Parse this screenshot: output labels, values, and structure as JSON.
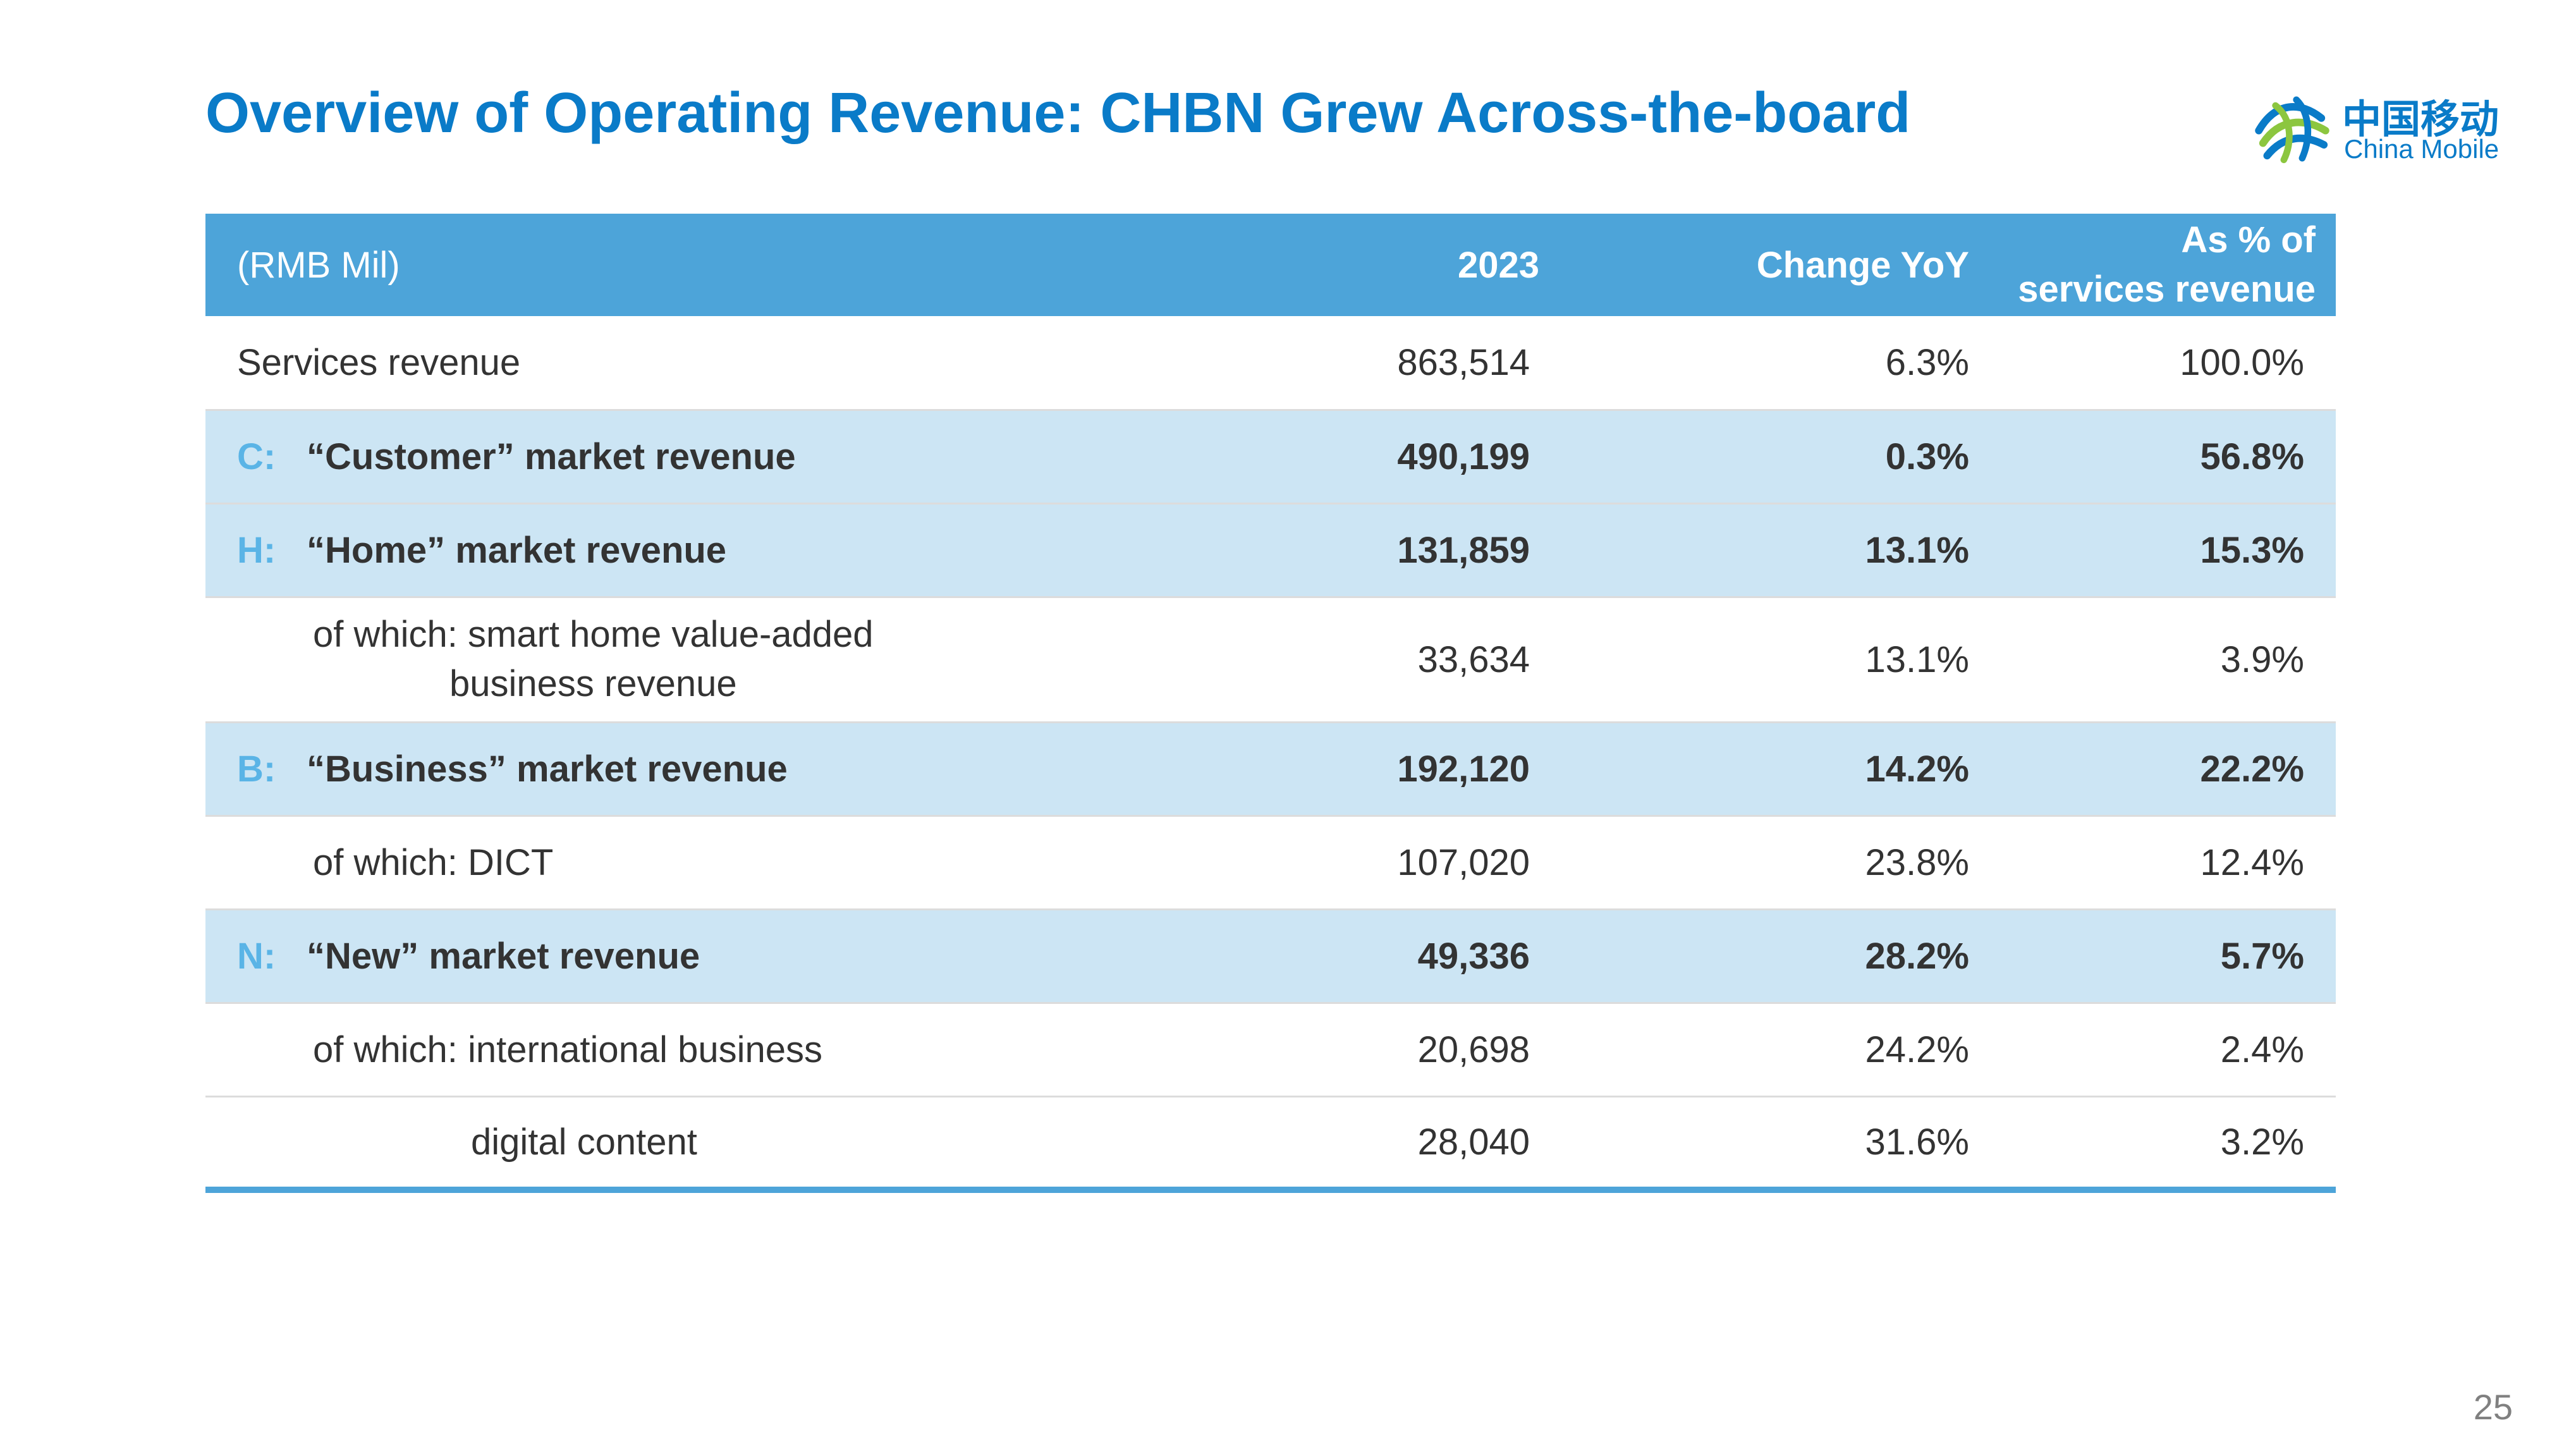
{
  "title": "Overview of Operating Revenue: CHBN Grew Across-the-board",
  "logo": {
    "cn": "中国移动",
    "en": "China Mobile",
    "icon": "china-mobile-logo-icon"
  },
  "table": {
    "headers": {
      "unit": "(RMB Mil)",
      "year": "2023",
      "change": "Change YoY",
      "pct_line1": "As % of",
      "pct_line2": "services revenue"
    },
    "rows": [
      {
        "prefix": "",
        "label": "Services revenue",
        "value": "863,514",
        "change": "6.3%",
        "pct": "100.0%"
      },
      {
        "prefix": "C:",
        "label": "“Customer” market revenue",
        "value": "490,199",
        "change": "0.3%",
        "pct": "56.8%"
      },
      {
        "prefix": "H:",
        "label": "“Home” market revenue",
        "value": "131,859",
        "change": "13.1%",
        "pct": "15.3%"
      },
      {
        "prefix": "",
        "label_line1": "of which: smart home value-added",
        "label_line2": "business revenue",
        "value": "33,634",
        "change": "13.1%",
        "pct": "3.9%"
      },
      {
        "prefix": "B:",
        "label": "“Business” market revenue",
        "value": "192,120",
        "change": "14.2%",
        "pct": "22.2%"
      },
      {
        "prefix": "",
        "label": "of which: DICT",
        "value": "107,020",
        "change": "23.8%",
        "pct": "12.4%"
      },
      {
        "prefix": "N:",
        "label": "“New” market revenue",
        "value": "49,336",
        "change": "28.2%",
        "pct": "5.7%"
      },
      {
        "prefix": "",
        "label": "of which: international business",
        "value": "20,698",
        "change": "24.2%",
        "pct": "2.4%"
      },
      {
        "prefix": "",
        "label": "digital content",
        "value": "28,040",
        "change": "31.6%",
        "pct": "3.2%"
      }
    ]
  },
  "page_number": "25",
  "colors": {
    "title": "#0a7bc8",
    "header_bg": "#4da4d9",
    "highlight_bg": "#cce5f4",
    "letter": "#5ab4e6"
  }
}
